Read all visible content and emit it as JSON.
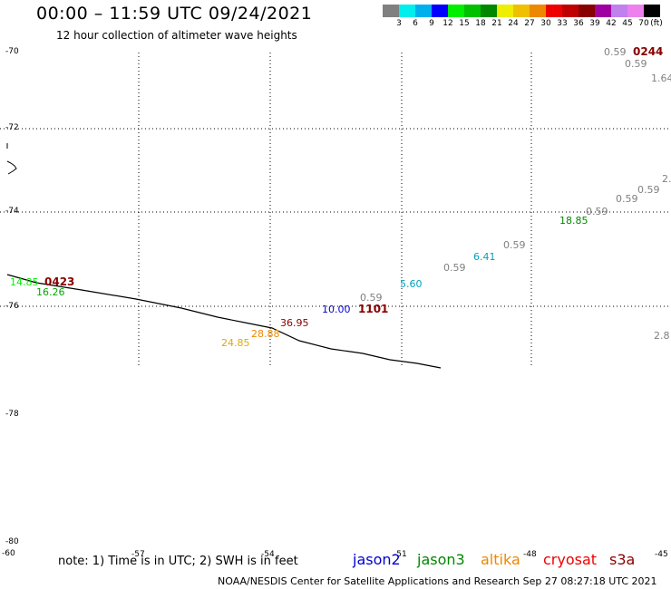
{
  "title": "00:00 – 11:59 UTC 09/24/2021",
  "subtitle": "12 hour collection of altimeter wave heights",
  "color_scale": {
    "unit_label": "(ft)",
    "colors": [
      "#808080",
      "#00eeee",
      "#00b0ee",
      "#0000ff",
      "#00ee00",
      "#00c000",
      "#008800",
      "#eeee00",
      "#eec000",
      "#ee8800",
      "#ee0000",
      "#c00000",
      "#880000",
      "#a000a0",
      "#c080ee",
      "#ee80ee",
      "#000000"
    ],
    "ticks": [
      "3",
      "6",
      "9",
      "12",
      "15",
      "18",
      "21",
      "24",
      "27",
      "30",
      "33",
      "36",
      "39",
      "42",
      "45",
      "70"
    ]
  },
  "latitudes": [
    "-70",
    "-72",
    "-74",
    "-76",
    "-78",
    "-80"
  ],
  "longitudes": [
    "-60",
    "-57",
    "-54",
    "-51",
    "-48",
    "-45"
  ],
  "labels": [
    {
      "text": "0.59",
      "color": "#808080",
      "kind": "value"
    },
    {
      "text": "0244",
      "color": "#880000",
      "kind": "id"
    },
    {
      "text": "0.59",
      "color": "#808080",
      "kind": "value"
    },
    {
      "text": "1.64",
      "color": "#808080",
      "kind": "value"
    },
    {
      "text": "2.",
      "color": "#808080",
      "kind": "value"
    },
    {
      "text": "0.59",
      "color": "#808080",
      "kind": "value"
    },
    {
      "text": "0.59",
      "color": "#808080",
      "kind": "value"
    },
    {
      "text": "0.59",
      "color": "#808080",
      "kind": "value"
    },
    {
      "text": "18.85",
      "color": "#008800",
      "kind": "value"
    },
    {
      "text": "0.59",
      "color": "#808080",
      "kind": "value"
    },
    {
      "text": "6.41",
      "color": "#00a0c0",
      "kind": "value"
    },
    {
      "text": "0.59",
      "color": "#808080",
      "kind": "value"
    },
    {
      "text": "5.60",
      "color": "#00a0c0",
      "kind": "value"
    },
    {
      "text": "0.59",
      "color": "#808080",
      "kind": "value"
    },
    {
      "text": "10.00",
      "color": "#0000cc",
      "kind": "value"
    },
    {
      "text": "1101",
      "color": "#880000",
      "kind": "id"
    },
    {
      "text": "36.95",
      "color": "#880000",
      "kind": "value"
    },
    {
      "text": "28.88",
      "color": "#ee8800",
      "kind": "value"
    },
    {
      "text": "24.85",
      "color": "#ddaa00",
      "kind": "value"
    },
    {
      "text": "14.85",
      "color": "#00ee00",
      "kind": "value"
    },
    {
      "text": "0423",
      "color": "#880000",
      "kind": "id"
    },
    {
      "text": "16.26",
      "color": "#00aa00",
      "kind": "value"
    },
    {
      "text": "2.8",
      "color": "#808080",
      "kind": "value"
    }
  ],
  "note": "note: 1) Time is in UTC; 2) SWH is in feet",
  "satellites": [
    {
      "name": "jason2",
      "color": "#0000cc"
    },
    {
      "name": "jason3",
      "color": "#008800"
    },
    {
      "name": "altika",
      "color": "#ee8800"
    },
    {
      "name": "cryosat",
      "color": "#ee0000"
    },
    {
      "name": "s3a",
      "color": "#880000"
    }
  ],
  "credit": "NOAA/NESDIS Center for Satellite Applications and Research    Sep 27 08:27:18 UTC 2021"
}
